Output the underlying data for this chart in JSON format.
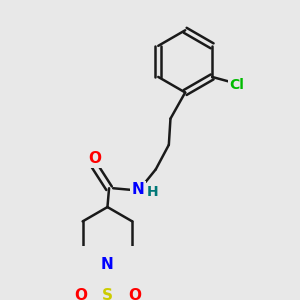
{
  "bg_color": "#e8e8e8",
  "bond_color": "#1a1a1a",
  "bond_width": 1.8,
  "atom_colors": {
    "N": "#0000ff",
    "O": "#ff0000",
    "S": "#cccc00",
    "Cl": "#00bb00",
    "H": "#007777",
    "C": "#1a1a1a"
  },
  "font_size_atom": 11,
  "font_size_cl": 10,
  "font_size_h": 10
}
